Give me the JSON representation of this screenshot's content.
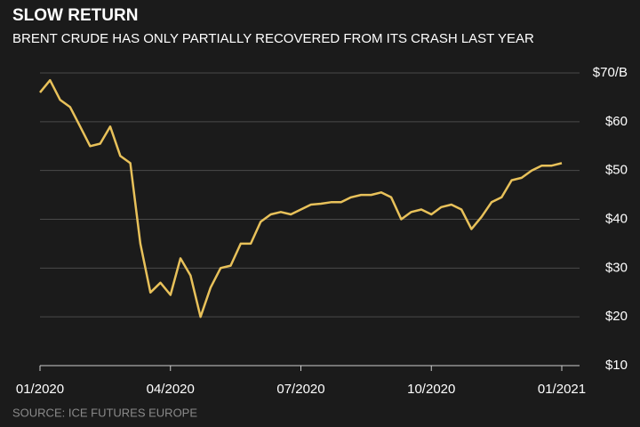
{
  "chart_data": {
    "type": "line",
    "title": "SLOW RETURN",
    "subtitle": "BRENT CRUDE HAS ONLY PARTIALLY RECOVERED FROM ITS CRASH LAST YEAR",
    "source": "SOURCE: ICE FUTURES EUROPE",
    "categories": [
      "01/2020",
      null,
      null,
      null,
      null,
      null,
      null,
      null,
      null,
      null,
      null,
      null,
      null,
      "04/2020",
      null,
      null,
      null,
      null,
      null,
      null,
      null,
      null,
      null,
      null,
      null,
      null,
      "07/2020",
      null,
      null,
      null,
      null,
      null,
      null,
      null,
      null,
      null,
      null,
      null,
      null,
      "10/2020",
      null,
      null,
      null,
      null,
      null,
      null,
      null,
      null,
      null,
      null,
      null,
      null,
      "01/2021"
    ],
    "series": [
      {
        "name": "Brent crude",
        "color": "#e8c15a",
        "values": [
          66,
          68.5,
          64.5,
          63,
          59,
          55,
          55.5,
          59,
          53,
          51.5,
          35,
          25,
          27,
          24.5,
          32,
          28.5,
          20,
          26,
          30,
          30.5,
          35,
          35,
          39.5,
          41,
          41.5,
          41,
          42,
          43,
          43.2,
          43.5,
          43.5,
          44.5,
          45,
          45,
          45.5,
          44.5,
          40,
          41.5,
          42,
          41,
          42.5,
          43,
          42,
          38,
          40.5,
          43.5,
          44.5,
          48,
          48.5,
          50,
          51,
          51,
          51.5
        ]
      }
    ],
    "ylim": [
      10,
      70
    ],
    "yticks": [
      {
        "value": 10,
        "label": "$10"
      },
      {
        "value": 20,
        "label": "$20"
      },
      {
        "value": 30,
        "label": "$30"
      },
      {
        "value": 40,
        "label": "$40"
      },
      {
        "value": 50,
        "label": "$50"
      },
      {
        "value": 60,
        "label": "$60"
      },
      {
        "value": 70,
        "label": "$70/B"
      }
    ],
    "grid": true
  }
}
